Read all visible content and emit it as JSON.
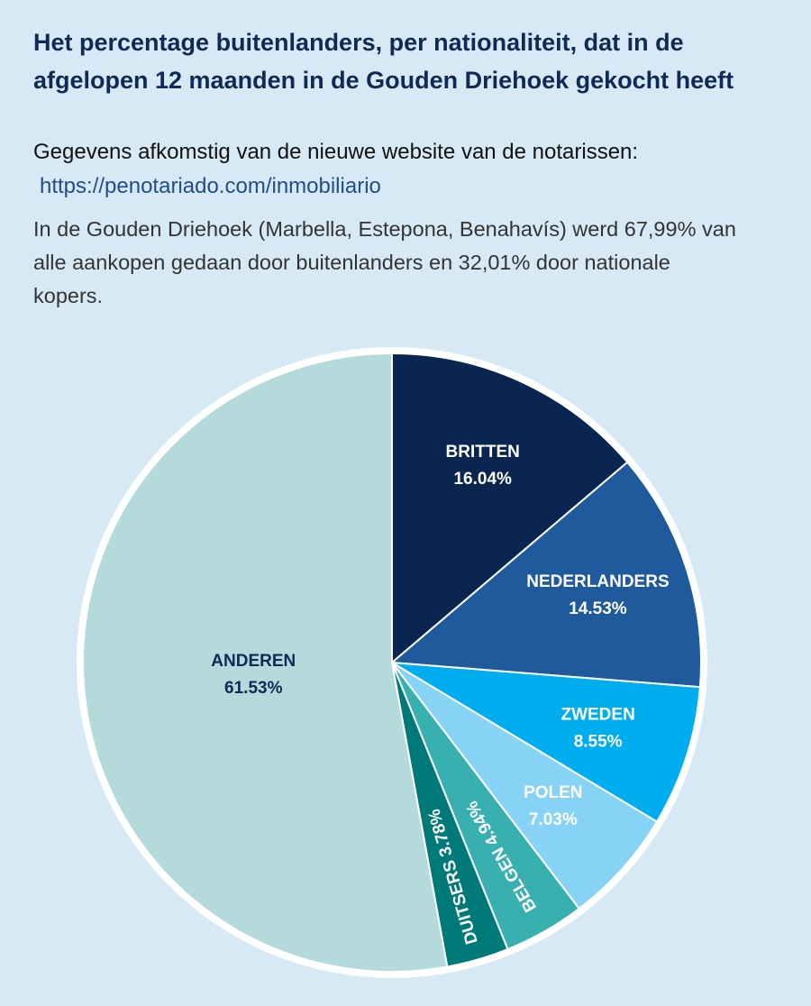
{
  "chart_data": {
    "type": "pie",
    "title": "Het percentage buitenlanders, per nationaliteit, dat in de afgelopen 12 maanden in de Gouden Driehoek gekocht heeft",
    "subtitle": "Gegevens afkomstig van de nieuwe website van de notarissen:",
    "source_url": "https://penotariado.com/inmobiliario",
    "description": "In de Gouden Driehoek (Marbella, Estepona, Benahavís) werd 67,99% van alle aankopen gedaan door buitenlanders en 32,01% door nationale kopers.",
    "categories": [
      "BRITTEN",
      "NEDERLANDERS",
      "ZWEDEN",
      "POLEN",
      "BELGEN",
      "DUITSERS",
      "ANDEREN"
    ],
    "values": [
      16.04,
      14.53,
      8.55,
      7.03,
      4.94,
      3.78,
      61.53
    ],
    "value_labels": [
      "16.04%",
      "14.53%",
      "8.55%",
      "7.03%",
      "4.94%",
      "3.78%",
      "61.53%"
    ],
    "colors": [
      "#0a2550",
      "#1f5b9c",
      "#00aeef",
      "#86d3f5",
      "#38b0b0",
      "#007a78",
      "#b5dadb"
    ],
    "label_colors": [
      "#ffffff",
      "#ffffff",
      "#ffffff",
      "#ffffff",
      "#ffffff",
      "#ffffff",
      "#0f2a55"
    ]
  }
}
